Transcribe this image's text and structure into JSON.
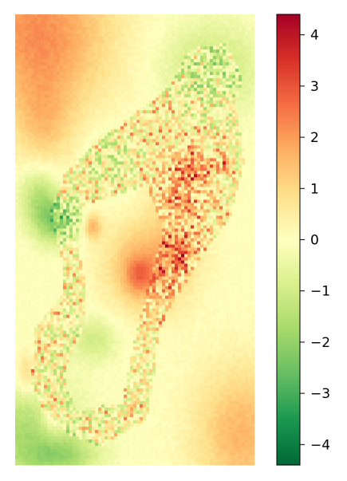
{
  "chart_data": {
    "type": "heatmap",
    "title": "",
    "xlabel": "",
    "ylabel": "",
    "colormap": "RdYlGn_r",
    "colorbar": {
      "vmin": -4.4,
      "vmax": 4.4,
      "ticks": [
        4,
        3,
        2,
        1,
        0,
        -1,
        -2,
        -3,
        -4
      ],
      "tick_labels": [
        "4",
        "3",
        "2",
        "1",
        "0",
        "−1",
        "−2",
        "−3",
        "−4"
      ],
      "placement": "right"
    },
    "grid": false,
    "axes_visible": false,
    "field": {
      "cols": 75,
      "rows": 141,
      "base": 0.0,
      "features": [
        {
          "kind": "gauss",
          "cx": 0.1,
          "cy": 0.04,
          "sx": 0.3,
          "sy": 0.18,
          "amp": 2.2
        },
        {
          "kind": "gauss",
          "cx": 0.12,
          "cy": 0.24,
          "sx": 0.12,
          "sy": 0.1,
          "amp": 1.0
        },
        {
          "kind": "gauss",
          "cx": 0.95,
          "cy": 0.93,
          "sx": 0.2,
          "sy": 0.15,
          "amp": 1.6
        },
        {
          "kind": "gauss",
          "cx": 0.82,
          "cy": 0.12,
          "sx": 0.2,
          "sy": 0.1,
          "amp": -1.2
        },
        {
          "kind": "gauss",
          "cx": 0.05,
          "cy": 0.93,
          "sx": 0.22,
          "sy": 0.12,
          "amp": -1.6
        },
        {
          "kind": "gauss",
          "cx": 0.18,
          "cy": 0.46,
          "sx": 0.1,
          "sy": 0.05,
          "amp": -2.2
        },
        {
          "kind": "gauss",
          "cx": 0.1,
          "cy": 0.4,
          "sx": 0.08,
          "sy": 0.06,
          "amp": -1.4
        },
        {
          "kind": "gauss",
          "cx": 0.4,
          "cy": 0.32,
          "sx": 0.1,
          "sy": 0.07,
          "amp": -0.8
        },
        {
          "kind": "gauss",
          "cx": 0.33,
          "cy": 0.72,
          "sx": 0.1,
          "sy": 0.05,
          "amp": -1.0
        },
        {
          "kind": "gauss",
          "cx": 0.2,
          "cy": 0.98,
          "sx": 0.15,
          "sy": 0.04,
          "amp": -1.2
        },
        {
          "kind": "gauss",
          "cx": 0.55,
          "cy": 0.56,
          "sx": 0.17,
          "sy": 0.1,
          "amp": 1.8
        },
        {
          "kind": "gauss",
          "cx": 0.52,
          "cy": 0.58,
          "sx": 0.06,
          "sy": 0.04,
          "amp": 1.2
        },
        {
          "kind": "gauss",
          "cx": 0.7,
          "cy": 0.4,
          "sx": 0.12,
          "sy": 0.12,
          "amp": 1.2
        },
        {
          "kind": "gauss",
          "cx": 0.75,
          "cy": 0.34,
          "sx": 0.06,
          "sy": 0.04,
          "amp": 1.2
        },
        {
          "kind": "gauss",
          "cx": 0.32,
          "cy": 0.47,
          "sx": 0.04,
          "sy": 0.03,
          "amp": 1.8
        },
        {
          "kind": "gauss",
          "cx": 0.68,
          "cy": 0.53,
          "sx": 0.05,
          "sy": 0.04,
          "amp": 1.0
        },
        {
          "kind": "gauss",
          "cx": 0.88,
          "cy": 0.33,
          "sx": 0.02,
          "sy": 0.02,
          "amp": 2.2
        },
        {
          "kind": "gauss",
          "cx": 0.05,
          "cy": 0.8,
          "sx": 0.05,
          "sy": 0.05,
          "amp": 1.2
        },
        {
          "kind": "gauss",
          "cx": 0.16,
          "cy": 0.88,
          "sx": 0.05,
          "sy": 0.05,
          "amp": 1.4
        }
      ],
      "texture": {
        "polygon": [
          [
            0.12,
            0.88
          ],
          [
            0.22,
            0.93
          ],
          [
            0.36,
            0.96
          ],
          [
            0.55,
            0.9
          ],
          [
            0.58,
            0.8
          ],
          [
            0.6,
            0.7
          ],
          [
            0.68,
            0.62
          ],
          [
            0.8,
            0.52
          ],
          [
            0.9,
            0.45
          ],
          [
            0.96,
            0.32
          ],
          [
            0.92,
            0.2
          ],
          [
            0.95,
            0.14
          ],
          [
            0.88,
            0.06
          ],
          [
            0.72,
            0.08
          ],
          [
            0.65,
            0.16
          ],
          [
            0.5,
            0.22
          ],
          [
            0.35,
            0.28
          ],
          [
            0.2,
            0.36
          ],
          [
            0.14,
            0.44
          ],
          [
            0.2,
            0.55
          ],
          [
            0.2,
            0.62
          ],
          [
            0.08,
            0.7
          ],
          [
            0.07,
            0.82
          ]
        ],
        "hole": [
          [
            0.3,
            0.42
          ],
          [
            0.55,
            0.38
          ],
          [
            0.62,
            0.48
          ],
          [
            0.56,
            0.6
          ],
          [
            0.5,
            0.72
          ],
          [
            0.45,
            0.86
          ],
          [
            0.25,
            0.88
          ],
          [
            0.2,
            0.8
          ],
          [
            0.28,
            0.7
          ],
          [
            0.3,
            0.6
          ],
          [
            0.25,
            0.5
          ]
        ],
        "amplitude": 1.3
      }
    }
  }
}
